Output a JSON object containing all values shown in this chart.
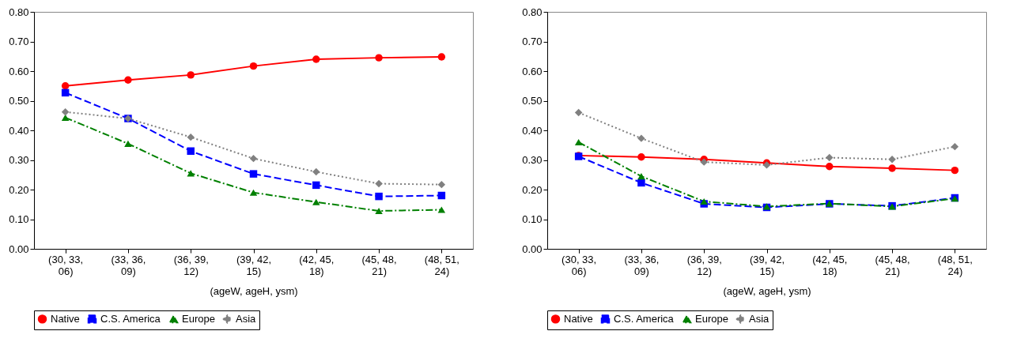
{
  "chart_data": [
    {
      "type": "line",
      "xlabel": "(ageW, ageH, ysm)",
      "categories": [
        "(30, 33, 06)",
        "(33, 36, 09)",
        "(36, 39, 12)",
        "(39, 42, 15)",
        "(42, 45, 18)",
        "(45, 48, 21)",
        "(48, 51, 24)"
      ],
      "ylim": [
        0,
        0.8
      ],
      "yticks": [
        {
          "value": 0,
          "label": "0.00"
        },
        {
          "value": 0.1,
          "label": "0.10"
        },
        {
          "value": 0.2,
          "label": "0.20"
        },
        {
          "value": 0.3,
          "label": "0.30"
        },
        {
          "value": 0.4,
          "label": "0.40"
        },
        {
          "value": 0.5,
          "label": "0.50"
        },
        {
          "value": 0.6,
          "label": "0.60"
        },
        {
          "value": 0.7,
          "label": "0.70"
        },
        {
          "value": 0.8,
          "label": "0.80"
        }
      ],
      "grid": false,
      "legend": "bottom",
      "series": [
        {
          "name": "Native",
          "color": "#ff0000",
          "marker": "circle",
          "line_style": "solid",
          "values": [
            0.55,
            0.57,
            0.587,
            0.617,
            0.64,
            0.645,
            0.648
          ]
        },
        {
          "name": "C.S. America",
          "color": "#0000ff",
          "marker": "square",
          "line_style": "dashed",
          "values": [
            0.527,
            0.44,
            0.33,
            0.253,
            0.215,
            0.177,
            0.18
          ]
        },
        {
          "name": "Europe",
          "color": "#008000",
          "marker": "triangle",
          "line_style": "dashdot",
          "values": [
            0.443,
            0.355,
            0.255,
            0.19,
            0.158,
            0.128,
            0.132
          ]
        },
        {
          "name": "Asia",
          "color": "#808080",
          "marker": "diamond",
          "line_style": "dotted",
          "values": [
            0.462,
            0.44,
            0.377,
            0.305,
            0.26,
            0.22,
            0.217
          ]
        }
      ]
    },
    {
      "type": "line",
      "xlabel": "(ageW, ageH, ysm)",
      "categories": [
        "(30, 33, 06)",
        "(33, 36, 09)",
        "(36, 39, 12)",
        "(39, 42, 15)",
        "(42, 45, 18)",
        "(45, 48, 21)",
        "(48, 51, 24)"
      ],
      "ylim": [
        0,
        0.8
      ],
      "yticks": [
        {
          "value": 0,
          "label": "0.00"
        },
        {
          "value": 0.1,
          "label": "0.10"
        },
        {
          "value": 0.2,
          "label": "0.20"
        },
        {
          "value": 0.3,
          "label": "0.30"
        },
        {
          "value": 0.4,
          "label": "0.40"
        },
        {
          "value": 0.5,
          "label": "0.50"
        },
        {
          "value": 0.6,
          "label": "0.60"
        },
        {
          "value": 0.7,
          "label": "0.70"
        },
        {
          "value": 0.8,
          "label": "0.80"
        }
      ],
      "grid": false,
      "legend": "bottom",
      "series": [
        {
          "name": "Native",
          "color": "#ff0000",
          "marker": "circle",
          "line_style": "solid",
          "values": [
            0.315,
            0.31,
            0.302,
            0.29,
            0.278,
            0.272,
            0.265
          ]
        },
        {
          "name": "C.S. America",
          "color": "#0000ff",
          "marker": "square",
          "line_style": "dashed",
          "values": [
            0.312,
            0.223,
            0.152,
            0.14,
            0.152,
            0.145,
            0.172
          ]
        },
        {
          "name": "Europe",
          "color": "#008000",
          "marker": "triangle",
          "line_style": "dashdot",
          "values": [
            0.36,
            0.245,
            0.16,
            0.143,
            0.153,
            0.143,
            0.17
          ]
        },
        {
          "name": "Asia",
          "color": "#808080",
          "marker": "diamond",
          "line_style": "dotted",
          "values": [
            0.46,
            0.373,
            0.293,
            0.283,
            0.308,
            0.302,
            0.345
          ]
        }
      ]
    }
  ]
}
